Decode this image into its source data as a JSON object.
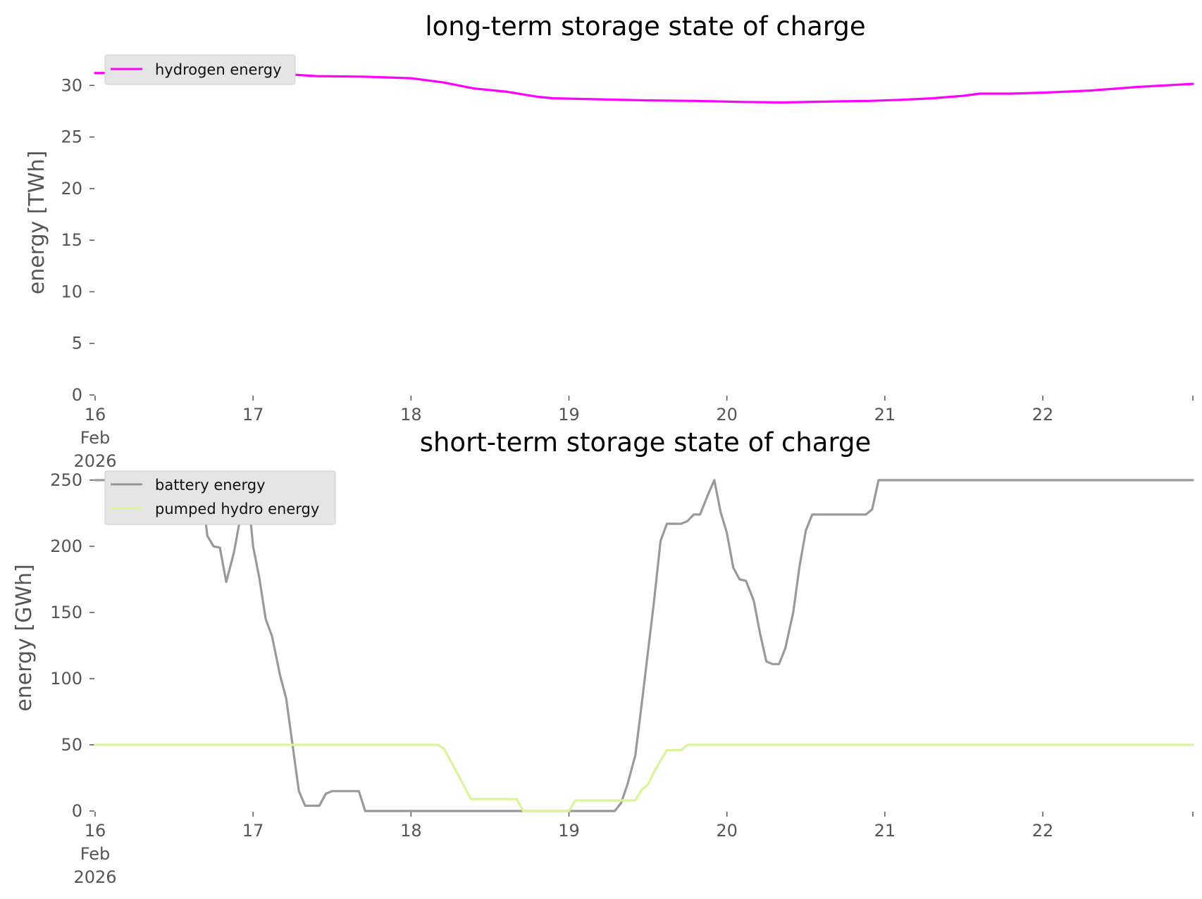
{
  "colors": {
    "hydrogen": "#ff00ff",
    "battery": "#999999",
    "pumped_hydro": "#d9f59a",
    "tick": "#555555",
    "legend_bg": "#e5e5e5"
  },
  "chart_data": [
    {
      "type": "line",
      "title": "long-term storage state of charge",
      "xlabel": "",
      "ylabel": "energy [TWh]",
      "xlim": [
        16.0,
        22.95
      ],
      "ylim": [
        0,
        32
      ],
      "yticks": [
        0,
        5,
        10,
        15,
        20,
        25,
        30
      ],
      "xtick_values": [
        16,
        17,
        18,
        19,
        20,
        21,
        22
      ],
      "xtick_labels": [
        "16",
        "17",
        "18",
        "19",
        "20",
        "21",
        "22"
      ],
      "xtick_first_extra": [
        "Feb",
        "2026"
      ],
      "grid": false,
      "legend_position": "top-left",
      "series": [
        {
          "name": "hydrogen energy",
          "color": "#ff00ff",
          "x": [
            16.0,
            16.5,
            17.0,
            17.2,
            17.4,
            17.7,
            18.0,
            18.2,
            18.4,
            18.6,
            18.8,
            18.9,
            19.2,
            19.5,
            19.8,
            20.1,
            20.35,
            20.7,
            20.9,
            21.1,
            21.3,
            21.5,
            21.6,
            21.8,
            22.0,
            22.3,
            22.6,
            22.95
          ],
          "y": [
            31.2,
            31.2,
            31.2,
            31.1,
            30.9,
            30.85,
            30.7,
            30.3,
            29.7,
            29.4,
            28.9,
            28.75,
            28.65,
            28.55,
            28.5,
            28.4,
            28.35,
            28.45,
            28.5,
            28.6,
            28.75,
            29.0,
            29.2,
            29.2,
            29.3,
            29.5,
            29.85,
            30.15
          ]
        }
      ]
    },
    {
      "type": "line",
      "title": "short-term storage state of charge",
      "xlabel": "",
      "ylabel": "energy [GWh]",
      "xlim": [
        16.0,
        22.95
      ],
      "ylim": [
        0,
        250
      ],
      "yticks": [
        0,
        50,
        100,
        150,
        200,
        250
      ],
      "xtick_values": [
        16,
        17,
        18,
        19,
        20,
        21,
        22
      ],
      "xtick_labels": [
        "16",
        "17",
        "18",
        "19",
        "20",
        "21",
        "22"
      ],
      "xtick_first_extra": [
        "Feb",
        "2026"
      ],
      "grid": false,
      "legend_position": "top-left",
      "series": [
        {
          "name": "battery energy",
          "color": "#999999",
          "x": [
            16.0,
            16.67,
            16.71,
            16.75,
            16.79,
            16.83,
            16.88,
            16.92,
            16.96,
            17.0,
            17.04,
            17.08,
            17.12,
            17.17,
            17.21,
            17.25,
            17.29,
            17.33,
            17.37,
            17.42,
            17.46,
            17.5,
            17.54,
            17.58,
            17.62,
            17.67,
            17.71,
            19.0,
            19.29,
            19.33,
            19.37,
            19.42,
            19.46,
            19.5,
            19.54,
            19.58,
            19.62,
            19.67,
            19.71,
            19.75,
            19.79,
            19.83,
            19.88,
            19.92,
            19.96,
            20.0,
            20.04,
            20.08,
            20.12,
            20.17,
            20.21,
            20.25,
            20.29,
            20.33,
            20.37,
            20.42,
            20.46,
            20.5,
            20.54,
            20.58,
            20.62,
            20.88,
            20.92,
            20.96,
            22.95
          ],
          "y": [
            250,
            250,
            208,
            200,
            199,
            173,
            196,
            222,
            250,
            200,
            176,
            145,
            132,
            103,
            85,
            50,
            15,
            4,
            4,
            4,
            13,
            15,
            15,
            15,
            15,
            15,
            0,
            0,
            0,
            6,
            20,
            42,
            80,
            120,
            160,
            204,
            217,
            217,
            217,
            219,
            224,
            224,
            239,
            250,
            226,
            210,
            184,
            175,
            174,
            159,
            134,
            113,
            111,
            111,
            123,
            150,
            185,
            212,
            224,
            224,
            224,
            224,
            228,
            250,
            250
          ]
        },
        {
          "name": "pumped hydro energy",
          "color": "#d9f59a",
          "x": [
            16.0,
            18.17,
            18.21,
            18.25,
            18.38,
            18.67,
            18.71,
            19.0,
            19.04,
            19.38,
            19.42,
            19.46,
            19.5,
            19.54,
            19.58,
            19.62,
            19.71,
            19.75,
            22.95
          ],
          "y": [
            50,
            50,
            47,
            38,
            9,
            9,
            0,
            0,
            8,
            8,
            8,
            16,
            20,
            30,
            38,
            46,
            46,
            50,
            50
          ]
        }
      ]
    }
  ]
}
